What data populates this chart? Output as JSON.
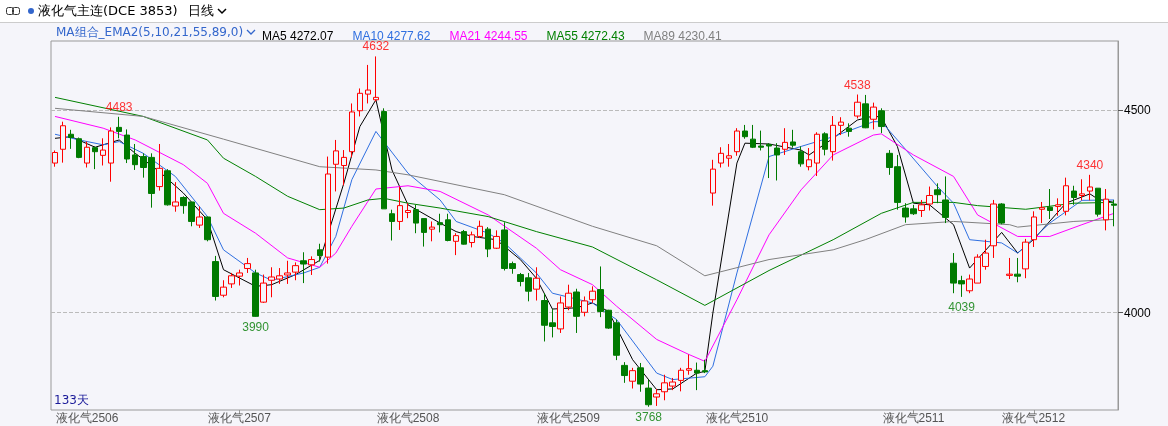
{
  "chart_data": {
    "type": "candlestick",
    "title": "液化气主连(DCE 3853)",
    "subtitle": "日线",
    "legend_title": "MA组合_EMA2(5,10,21,55,89,0)",
    "categories": [
      null,
      null,
      null,
      null,
      "液化气2506",
      null,
      null,
      null,
      null,
      null,
      null,
      null,
      null,
      null,
      null,
      null,
      null,
      null,
      null,
      null,
      null,
      null,
      null,
      "液化气2507",
      null,
      null,
      null,
      null,
      null,
      null,
      null,
      null,
      null,
      null,
      null,
      null,
      null,
      null,
      null,
      null,
      null,
      null,
      null,
      null,
      "液化气2508",
      null,
      null,
      null,
      null,
      null,
      null,
      null,
      null,
      null,
      null,
      null,
      null,
      null,
      null,
      null,
      null,
      null,
      null,
      null,
      "液化气2509",
      null,
      null,
      null,
      null,
      null,
      null,
      null,
      null,
      null,
      null,
      null,
      null,
      null,
      null,
      null,
      null,
      null,
      null,
      null,
      null,
      "液化气2510",
      null,
      null,
      null,
      null,
      null,
      null,
      null,
      null,
      null,
      null,
      null,
      null,
      null,
      null,
      null,
      null,
      null,
      null,
      null,
      null,
      null,
      "液化气2511",
      null,
      null,
      null,
      null,
      null,
      null,
      null,
      null,
      null,
      null,
      null,
      null,
      null,
      null,
      "液化气2512",
      null,
      null,
      null,
      null,
      null,
      null,
      null,
      null,
      null,
      null
    ],
    "ohlc": [
      [
        4369,
        4400,
        4360,
        4395
      ],
      [
        4403,
        4471,
        4370,
        4461
      ],
      [
        4440,
        4451,
        4404,
        4432
      ],
      [
        4429,
        4432,
        4381,
        4383
      ],
      [
        4369,
        4422,
        4358,
        4408
      ],
      [
        4407,
        4410,
        4354,
        4397
      ],
      [
        4388,
        4430,
        4363,
        4401
      ],
      [
        4369,
        4457,
        4323,
        4448
      ],
      [
        4457,
        4483,
        4430,
        4447
      ],
      [
        4438,
        4452,
        4369,
        4379
      ],
      [
        4389,
        4416,
        4352,
        4365
      ],
      [
        4385,
        4393,
        4333,
        4358
      ],
      [
        4383,
        4393,
        4259,
        4294
      ],
      [
        4311,
        4416,
        4301,
        4356
      ],
      [
        4350,
        4354,
        4264,
        4266
      ],
      [
        4263,
        4322,
        4249,
        4273
      ],
      [
        4284,
        4287,
        4244,
        4264
      ],
      [
        4273,
        4273,
        4213,
        4225
      ],
      [
        4216,
        4262,
        4209,
        4236
      ],
      [
        4236,
        4237,
        4176,
        4180
      ],
      [
        4126,
        4140,
        4030,
        4040
      ],
      [
        4043,
        4080,
        4038,
        4063
      ],
      [
        4071,
        4098,
        4061,
        4091
      ],
      [
        4090,
        4106,
        4067,
        4098
      ],
      [
        4109,
        4135,
        4098,
        4121
      ],
      [
        4098,
        4106,
        3990,
        3991
      ],
      [
        4026,
        4094,
        4024,
        4073
      ],
      [
        4080,
        4112,
        4038,
        4088
      ],
      [
        4083,
        4110,
        4071,
        4091
      ],
      [
        4093,
        4128,
        4071,
        4098
      ],
      [
        4100,
        4124,
        4080,
        4116
      ],
      [
        4128,
        4149,
        4073,
        4120
      ],
      [
        4118,
        4139,
        4093,
        4131
      ],
      [
        4155,
        4170,
        4126,
        4141
      ],
      [
        4137,
        4385,
        4121,
        4342
      ],
      [
        4366,
        4426,
        4299,
        4399
      ],
      [
        4363,
        4401,
        4314,
        4383
      ],
      [
        4397,
        4516,
        4383,
        4495
      ],
      [
        4498,
        4553,
        4484,
        4541
      ],
      [
        4539,
        4611,
        4516,
        4549
      ],
      [
        4525,
        4632,
        4521,
        4531
      ],
      [
        4496,
        4504,
        4256,
        4256
      ],
      [
        4244,
        4254,
        4178,
        4225
      ],
      [
        4225,
        4311,
        4204,
        4264
      ],
      [
        4247,
        4270,
        4233,
        4252
      ],
      [
        4254,
        4266,
        4196,
        4221
      ],
      [
        4232,
        4232,
        4163,
        4198
      ],
      [
        4206,
        4225,
        4176,
        4211
      ],
      [
        4222,
        4244,
        4198,
        4217
      ],
      [
        4229,
        4244,
        4176,
        4178
      ],
      [
        4176,
        4196,
        4142,
        4190
      ],
      [
        4200,
        4204,
        4168,
        4169
      ],
      [
        4173,
        4200,
        4161,
        4192
      ],
      [
        4188,
        4227,
        4184,
        4213
      ],
      [
        4206,
        4211,
        4137,
        4157
      ],
      [
        4159,
        4203,
        4157,
        4188
      ],
      [
        4204,
        4223,
        4104,
        4109
      ],
      [
        4121,
        4126,
        4096,
        4109
      ],
      [
        4094,
        4098,
        4065,
        4077
      ],
      [
        4086,
        4098,
        4028,
        4053
      ],
      [
        4058,
        4112,
        4030,
        4085
      ],
      [
        4030,
        4048,
        3929,
        3969
      ],
      [
        3975,
        4009,
        3939,
        3966
      ],
      [
        3960,
        4040,
        3950,
        4024
      ],
      [
        4014,
        4069,
        4006,
        4048
      ],
      [
        4051,
        4059,
        3950,
        3991
      ],
      [
        4001,
        4040,
        3991,
        4029
      ],
      [
        4032,
        4065,
        4024,
        4053
      ],
      [
        4057,
        4114,
        3989,
        4003
      ],
      [
        4006,
        4007,
        3960,
        3962
      ],
      [
        3975,
        3983,
        3883,
        3895
      ],
      [
        3870,
        3878,
        3827,
        3845
      ],
      [
        3831,
        3864,
        3813,
        3857
      ],
      [
        3864,
        3876,
        3805,
        3824
      ],
      [
        3814,
        3835,
        3768,
        3773
      ],
      [
        3792,
        3812,
        3770,
        3800
      ],
      [
        3805,
        3847,
        3784,
        3827
      ],
      [
        3819,
        3839,
        3809,
        3829
      ],
      [
        3833,
        3864,
        3806,
        3858
      ],
      [
        3858,
        3897,
        3847,
        3862
      ],
      [
        3858,
        3877,
        3809,
        3851
      ],
      [
        3857,
        3884,
        3851,
        3854
      ],
      [
        4295,
        4377,
        4264,
        4354
      ],
      [
        4369,
        4408,
        4358,
        4393
      ],
      [
        4381,
        4416,
        4360,
        4387
      ],
      [
        4397,
        4455,
        4387,
        4448
      ],
      [
        4448,
        4463,
        4429,
        4434
      ],
      [
        4428,
        4463,
        4406,
        4408
      ],
      [
        4411,
        4449,
        4400,
        4408
      ],
      [
        4415,
        4418,
        4332,
        4411
      ],
      [
        4406,
        4418,
        4326,
        4389
      ],
      [
        4403,
        4455,
        4389,
        4420
      ],
      [
        4421,
        4451,
        4407,
        4413
      ],
      [
        4397,
        4410,
        4360,
        4367
      ],
      [
        4360,
        4406,
        4351,
        4377
      ],
      [
        4369,
        4445,
        4337,
        4440
      ],
      [
        4441,
        4445,
        4388,
        4403
      ],
      [
        4397,
        4485,
        4375,
        4462
      ],
      [
        4462,
        4482,
        4438,
        4470
      ],
      [
        4455,
        4467,
        4434,
        4447
      ],
      [
        4485,
        4538,
        4479,
        4519
      ],
      [
        4515,
        4537,
        4455,
        4456
      ],
      [
        4477,
        4518,
        4452,
        4507
      ],
      [
        4498,
        4504,
        4443,
        4459
      ],
      [
        4393,
        4401,
        4340,
        4358
      ],
      [
        4360,
        4389,
        4254,
        4272
      ],
      [
        4258,
        4270,
        4222,
        4236
      ],
      [
        4256,
        4266,
        4241,
        4244
      ],
      [
        4252,
        4278,
        4236,
        4266
      ],
      [
        4268,
        4311,
        4252,
        4289
      ],
      [
        4303,
        4319,
        4270,
        4291
      ],
      [
        4278,
        4336,
        4221,
        4235
      ],
      [
        4122,
        4147,
        4048,
        4073
      ],
      [
        4079,
        4091,
        4039,
        4071
      ],
      [
        4054,
        4094,
        4048,
        4083
      ],
      [
        4073,
        4144,
        4073,
        4137
      ],
      [
        4114,
        4180,
        4106,
        4147
      ],
      [
        4165,
        4278,
        4135,
        4268
      ],
      [
        4268,
        4270,
        4218,
        4221
      ],
      [
        4092,
        4135,
        4083,
        4095
      ],
      [
        4095,
        4135,
        4075,
        4090
      ],
      [
        4108,
        4182,
        4085,
        4174
      ],
      [
        4180,
        4250,
        4162,
        4236
      ],
      [
        4255,
        4273,
        4221,
        4259
      ],
      [
        4260,
        4305,
        4231,
        4252
      ],
      [
        4262,
        4282,
        4239,
        4266
      ],
      [
        4250,
        4333,
        4240,
        4313
      ],
      [
        4300,
        4313,
        4266,
        4284
      ],
      [
        4289,
        4329,
        4277,
        4293
      ],
      [
        4300,
        4340,
        4277,
        4310
      ],
      [
        4307,
        4307,
        4237,
        4243
      ],
      [
        4229,
        4305,
        4203,
        4280
      ],
      [
        4268,
        4278,
        4213,
        4265
      ]
    ],
    "series": [
      {
        "type": "line",
        "name": "MA5 4272.07",
        "color": "#000000",
        "values": [
          4430,
          null,
          4434,
          null,
          null,
          4408,
          null,
          null,
          4426,
          null,
          4393,
          null,
          null,
          4348,
          null,
          null,
          4295,
          null,
          null,
          4229,
          null,
          4106,
          null,
          null,
          null,
          4065,
          null,
          4069,
          null,
          null,
          4094,
          null,
          null,
          4129,
          null,
          null,
          4319,
          null,
          4459,
          null,
          4525,
          null,
          4352,
          null,
          4266,
          null,
          null,
          null,
          4221,
          null,
          4200,
          null,
          4188,
          null,
          null,
          4180,
          null,
          null,
          4131,
          null,
          4085,
          null,
          4009,
          null,
          null,
          4012,
          null,
          4024,
          null,
          4003,
          null,
          null,
          3884,
          null,
          null,
          3810,
          null,
          3812,
          null,
          null,
          3851,
          3855,
          3999,
          null,
          null,
          4369,
          4418,
          null,
          null,
          4416,
          null,
          null,
          null,
          4401,
          4389,
          null,
          null,
          4430,
          null,
          null,
          4475,
          null,
          4485,
          4482,
          null,
          4410,
          null,
          4270,
          null,
          4266,
          null,
          null,
          4217,
          null,
          4110,
          null,
          null,
          null,
          4198,
          null,
          4147,
          null,
          4181,
          null,
          null,
          null,
          4270,
          null,
          null,
          4293,
          4280,
          null,
          4272
        ]
      },
      {
        "type": "line",
        "name": "MA10 4277.62",
        "color": "#2f6fe0",
        "values": [
          4440,
          null,
          null,
          4426,
          null,
          null,
          4414,
          null,
          4422,
          null,
          null,
          4393,
          null,
          null,
          null,
          4336,
          null,
          null,
          null,
          4237,
          null,
          4155,
          null,
          null,
          null,
          4098,
          null,
          4080,
          null,
          null,
          null,
          4098,
          null,
          4112,
          null,
          4188,
          null,
          4328,
          null,
          null,
          4447,
          null,
          null,
          null,
          4344,
          null,
          null,
          null,
          4278,
          null,
          4225,
          null,
          null,
          null,
          4196,
          null,
          4172,
          null,
          null,
          null,
          4098,
          null,
          4048,
          null,
          null,
          null,
          null,
          4024,
          null,
          null,
          3983,
          null,
          null,
          null,
          null,
          3851,
          null,
          3835,
          null,
          null,
          null,
          3842,
          3868,
          null,
          null,
          4098,
          null,
          null,
          null,
          4385,
          null,
          null,
          null,
          4410,
          null,
          null,
          null,
          4434,
          null,
          null,
          null,
          null,
          4471,
          4471,
          null,
          4426,
          null,
          null,
          null,
          null,
          4311,
          null,
          4270,
          null,
          4180,
          null,
          null,
          null,
          4172,
          null,
          4147,
          null,
          null,
          null,
          4221,
          null,
          null,
          null,
          4277,
          null,
          null,
          null,
          4278
        ]
      },
      {
        "type": "line",
        "name": "MA21 4244.55",
        "color": "#ff00ff",
        "values": [
          4484,
          null,
          null,
          null,
          null,
          null,
          4455,
          null,
          null,
          null,
          4426,
          null,
          null,
          null,
          null,
          null,
          4365,
          null,
          null,
          4319,
          null,
          4245,
          null,
          null,
          null,
          4196,
          null,
          null,
          null,
          4135,
          null,
          null,
          null,
          4112,
          null,
          4147,
          null,
          4213,
          null,
          null,
          4305,
          null,
          null,
          null,
          4313,
          null,
          null,
          null,
          4299,
          null,
          null,
          null,
          null,
          null,
          4241,
          null,
          null,
          null,
          null,
          null,
          4159,
          null,
          null,
          4106,
          null,
          null,
          null,
          4069,
          null,
          null,
          4016,
          null,
          null,
          null,
          null,
          3934,
          null,
          null,
          null,
          3897,
          null,
          3880,
          null,
          null,
          null,
          4032,
          null,
          null,
          null,
          4192,
          null,
          null,
          null,
          4303,
          null,
          null,
          null,
          4389,
          null,
          null,
          null,
          null,
          4438,
          4441,
          null,
          null,
          null,
          4389,
          null,
          null,
          null,
          null,
          4336,
          null,
          null,
          4241,
          null,
          null,
          null,
          null,
          4188,
          null,
          null,
          null,
          4188,
          null,
          null,
          null,
          4217,
          null,
          null,
          null,
          4245
        ]
      },
      {
        "type": "line",
        "name": "MA55 4272.43",
        "color": "#008000",
        "values": [
          4531,
          null,
          null,
          null,
          null,
          null,
          null,
          null,
          null,
          null,
          null,
          4484,
          null,
          null,
          null,
          null,
          null,
          null,
          null,
          4426,
          null,
          4381,
          null,
          null,
          null,
          4336,
          null,
          null,
          null,
          4287,
          null,
          null,
          null,
          4254,
          null,
          null,
          4258,
          null,
          null,
          4278,
          null,
          4282,
          null,
          null,
          4270,
          null,
          null,
          null,
          4258,
          null,
          null,
          null,
          null,
          null,
          4237,
          null,
          null,
          null,
          null,
          null,
          4200,
          null,
          null,
          null,
          null,
          null,
          null,
          4162,
          null,
          null,
          null,
          null,
          null,
          null,
          null,
          4081,
          null,
          null,
          null,
          null,
          null,
          4018,
          null,
          null,
          null,
          null,
          null,
          null,
          null,
          4104,
          null,
          null,
          null,
          null,
          null,
          null,
          null,
          4180,
          null,
          null,
          null,
          null,
          null,
          4245,
          null,
          null,
          null,
          4272,
          null,
          null,
          null,
          null,
          4272,
          null,
          null,
          4264,
          null,
          null,
          null,
          null,
          null,
          4255,
          null,
          null,
          null,
          null,
          null,
          4270,
          null,
          null,
          null,
          null,
          4272
        ]
      },
      {
        "type": "line",
        "name": "MA89 4230.41",
        "color": "#808080",
        "values": [
          4504,
          null,
          null,
          null,
          null,
          null,
          null,
          null,
          null,
          null,
          null,
          4484,
          null,
          null,
          null,
          null,
          null,
          null,
          null,
          null,
          null,
          4428,
          null,
          null,
          null,
          null,
          null,
          null,
          null,
          null,
          null,
          null,
          null,
          4360,
          null,
          null,
          null,
          null,
          null,
          null,
          4352,
          null,
          null,
          null,
          4340,
          null,
          null,
          null,
          null,
          null,
          null,
          null,
          null,
          null,
          null,
          null,
          4291,
          null,
          null,
          null,
          null,
          null,
          null,
          null,
          null,
          null,
          null,
          4213,
          null,
          null,
          null,
          null,
          null,
          null,
          null,
          4165,
          null,
          null,
          null,
          null,
          null,
          4091,
          null,
          null,
          null,
          null,
          null,
          null,
          null,
          4131,
          null,
          null,
          null,
          null,
          null,
          null,
          null,
          4155,
          null,
          null,
          null,
          4180,
          null,
          null,
          null,
          null,
          4217,
          null,
          null,
          null,
          null,
          null,
          4225,
          null,
          null,
          null,
          null,
          null,
          null,
          4217,
          4211,
          null,
          null,
          null,
          null,
          null,
          null,
          4225,
          null,
          null,
          null,
          null,
          4230
        ]
      }
    ],
    "ylim": [
      3760,
      4670
    ],
    "yticks": [
      4000,
      4500
    ],
    "annotations": [
      {
        "text": "4483",
        "y": 4483
      },
      {
        "text": "4632",
        "y": 4632
      },
      {
        "text": "3990",
        "y": 3990
      },
      {
        "text": "3768",
        "y": 3768
      },
      {
        "text": "4538",
        "y": 4538
      },
      {
        "text": "4039",
        "y": 4039
      },
      {
        "text": "4340",
        "y": 4340
      },
      "133天"
    ],
    "grid": "y",
    "legend": "top left",
    "marker": "none"
  }
}
